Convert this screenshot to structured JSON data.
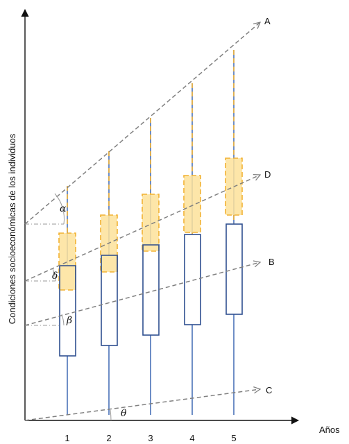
{
  "axis": {
    "y_label": "Condiciones socioeconómicas de los individuos",
    "x_label": "Años",
    "x_ticks": [
      "1",
      "2",
      "3",
      "4",
      "5"
    ]
  },
  "lines": [
    {
      "label": "A"
    },
    {
      "label": "D"
    },
    {
      "label": "B"
    },
    {
      "label": "C"
    }
  ],
  "angles": {
    "alpha": "α",
    "delta": "δ",
    "beta": "β",
    "theta": "θ"
  },
  "colors": {
    "axis": "#111111",
    "box_outline": "#2f4f8f",
    "whisker": "#4a72b8",
    "orange_fill": "#fde29a",
    "orange_stroke": "#f2b233",
    "trend_line": "#808080"
  }
}
